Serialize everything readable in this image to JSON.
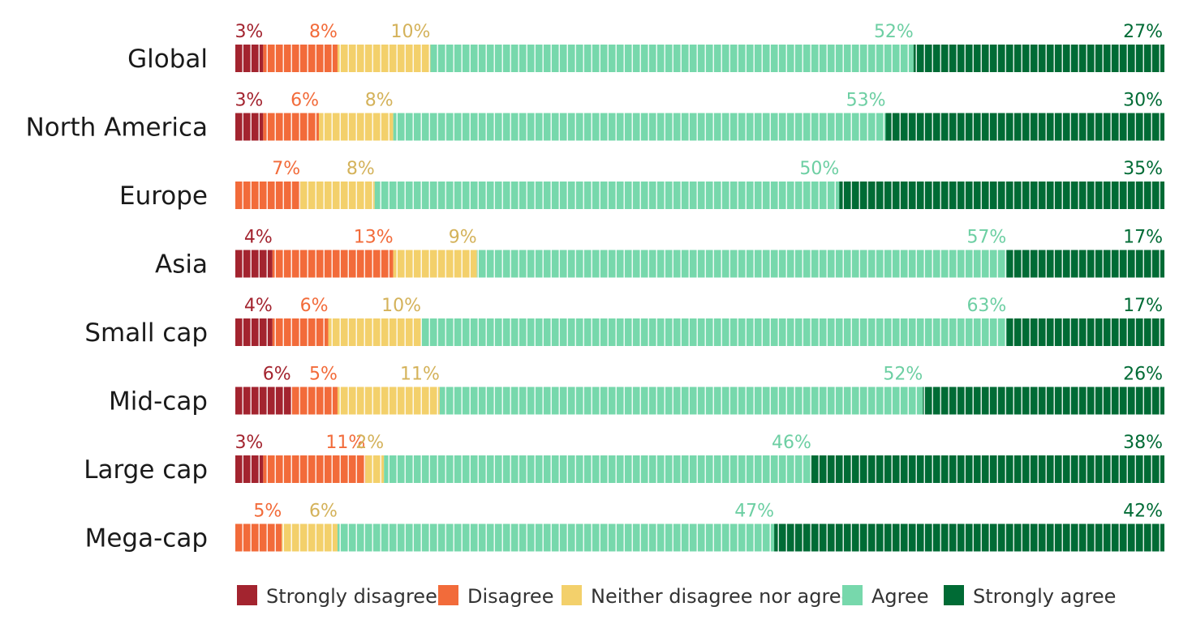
{
  "chart_data": {
    "type": "bar",
    "orientation": "horizontal",
    "stacked": true,
    "normalized": true,
    "categories": [
      "Global",
      "North America",
      "Europe",
      "Asia",
      "Small cap",
      "Mid-cap",
      "Large cap",
      "Mega-cap"
    ],
    "series": [
      {
        "name": "Strongly disagree",
        "color": "#a3242f",
        "labelColor": "#a3242f",
        "values": [
          3,
          3,
          0,
          4,
          4,
          6,
          3,
          0
        ]
      },
      {
        "name": "Disagree",
        "color": "#f26b3a",
        "labelColor": "#f26b3a",
        "values": [
          8,
          6,
          7,
          13,
          6,
          5,
          11,
          5
        ]
      },
      {
        "name": "Neither disagree nor agree",
        "color": "#f3d06b",
        "labelColor": "#d4b25a",
        "values": [
          10,
          8,
          8,
          9,
          10,
          11,
          2,
          6
        ]
      },
      {
        "name": "Agree",
        "color": "#77d8ac",
        "labelColor": "#6dcfa3",
        "values": [
          52,
          53,
          50,
          57,
          63,
          52,
          46,
          47
        ]
      },
      {
        "name": "Strongly agree",
        "color": "#006b35",
        "labelColor": "#006b35",
        "values": [
          27,
          30,
          35,
          17,
          17,
          26,
          38,
          42
        ]
      }
    ],
    "value_suffix": "%",
    "legend_position": "bottom",
    "grid": false,
    "title": "",
    "xlabel": "",
    "ylabel": ""
  }
}
